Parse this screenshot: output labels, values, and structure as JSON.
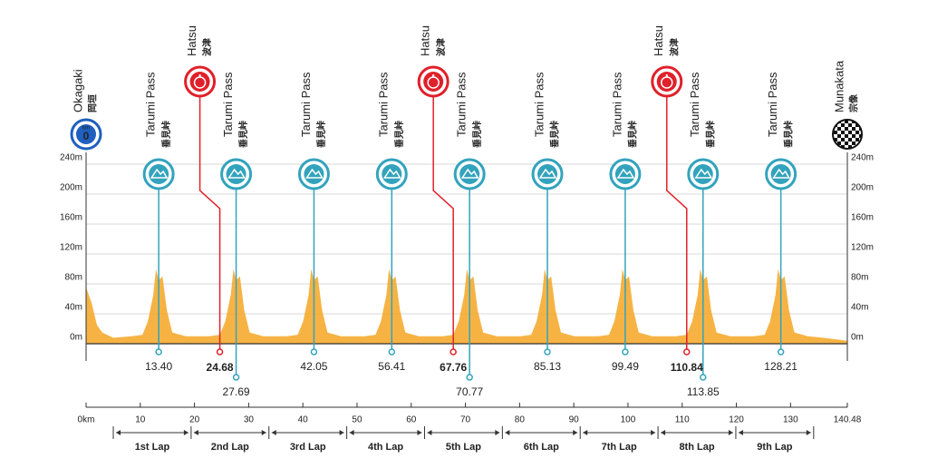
{
  "chart_data": {
    "type": "area",
    "color": "#f5a623",
    "xlim": [
      0,
      140.48
    ],
    "ylim": [
      0,
      240
    ],
    "yticks": [
      {
        "value": 0,
        "label": "0m"
      },
      {
        "value": 40,
        "label": "40m"
      },
      {
        "value": 80,
        "label": "80m"
      },
      {
        "value": 120,
        "label": "120m"
      },
      {
        "value": 160,
        "label": "160m"
      },
      {
        "value": 200,
        "label": "200m"
      },
      {
        "value": 240,
        "label": "240m"
      }
    ],
    "xticks": [
      {
        "value": 0,
        "label": "0km"
      },
      10,
      20,
      30,
      40,
      50,
      60,
      70,
      80,
      90,
      100,
      110,
      120,
      130,
      140.48
    ],
    "grid": true,
    "x": [
      0,
      1,
      2,
      3,
      5,
      8.4,
      10.4,
      11.4,
      12.4,
      12.9,
      13.4,
      14.1,
      14.9,
      15.9,
      18.4,
      22.69,
      24.69,
      25.69,
      26.69,
      27.19,
      27.69,
      28.39,
      29.19,
      30.19,
      32.69,
      37.05,
      39.05,
      40.05,
      41.05,
      41.55,
      42.05,
      42.75,
      43.55,
      44.55,
      47.05,
      51.41,
      53.41,
      54.41,
      55.41,
      55.91,
      56.41,
      57.11,
      57.91,
      58.91,
      61.41,
      65.77,
      67.77,
      68.77,
      69.77,
      70.27,
      70.77,
      71.47,
      72.27,
      73.27,
      75.77,
      80.13,
      82.13,
      83.13,
      84.13,
      84.63,
      85.13,
      85.83,
      86.63,
      87.63,
      90.13,
      94.49,
      96.49,
      97.49,
      98.49,
      98.99,
      99.49,
      100.19,
      100.99,
      101.99,
      104.49,
      108.85,
      110.85,
      111.85,
      112.85,
      113.35,
      113.85,
      114.55,
      115.35,
      116.35,
      118.85,
      123.21,
      125.21,
      126.21,
      127.21,
      127.71,
      128.21,
      128.91,
      129.71,
      130.71,
      133.21,
      136,
      140.48
    ],
    "values": [
      75,
      55,
      25,
      15,
      8,
      10,
      12,
      30,
      65,
      100,
      85,
      90,
      45,
      15,
      10,
      10,
      12,
      30,
      65,
      100,
      85,
      90,
      45,
      15,
      10,
      10,
      12,
      30,
      65,
      100,
      85,
      90,
      45,
      15,
      10,
      10,
      12,
      30,
      65,
      100,
      85,
      90,
      45,
      15,
      10,
      10,
      12,
      30,
      65,
      100,
      85,
      90,
      45,
      15,
      10,
      10,
      12,
      30,
      65,
      100,
      85,
      90,
      45,
      15,
      10,
      10,
      12,
      30,
      65,
      100,
      85,
      90,
      45,
      15,
      10,
      10,
      12,
      30,
      65,
      100,
      85,
      90,
      45,
      15,
      10,
      10,
      12,
      30,
      65,
      100,
      85,
      90,
      45,
      15,
      10,
      8,
      4
    ],
    "start": {
      "name": "Okagaki",
      "name_ja": "岡垣",
      "unit": "km",
      "km": 0
    },
    "finish": {
      "name": "Munakata",
      "name_ja": "宗像"
    },
    "kom": {
      "name": "Tarumi Pass",
      "name_ja": "垂見峠",
      "color": "#33a3bd",
      "values": [
        13.4,
        27.69,
        42.05,
        56.41,
        70.77,
        85.13,
        99.49,
        113.85,
        128.21
      ],
      "value_labels": [
        "13.40",
        "27.69",
        "42.05",
        "56.41",
        "70.77",
        "85.13",
        "99.49",
        "113.85",
        "128.21"
      ]
    },
    "sprint": {
      "name": "Hatsu",
      "name_ja": "波津",
      "color": "#e0202a",
      "values": [
        24.68,
        67.76,
        110.84
      ]
    },
    "laps": {
      "names": [
        "1st Lap",
        "2nd Lap",
        "3rd Lap",
        "4th Lap",
        "5th Lap",
        "6th Lap",
        "7th Lap",
        "8th Lap",
        "9th Lap"
      ],
      "bounds": [
        5.02,
        19.38,
        33.74,
        48.1,
        62.46,
        76.82,
        91.18,
        105.54,
        119.9,
        134.26
      ]
    }
  }
}
